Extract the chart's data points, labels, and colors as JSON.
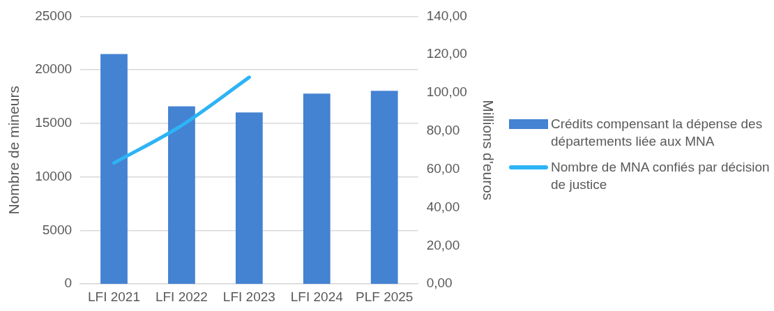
{
  "chart_data": {
    "type": "bar",
    "categories": [
      "LFI 2021",
      "LFI 2022",
      "LFI 2023",
      "LFI 2024",
      "PLF 2025"
    ],
    "series": [
      {
        "name": "Crédits compensant la dépense des départements liée aux MNA",
        "color": "#4482d2",
        "axis": "y2",
        "values": [
          120.3,
          92.9,
          89.7,
          99.6,
          101.0
        ]
      },
      {
        "name": "Nombre de MNA confiés par décision de justice",
        "type": "line",
        "color": "#2db4f5",
        "values": [
          11300,
          14800,
          19300,
          null,
          null
        ]
      }
    ],
    "ylabel": "Nombre de mineurs",
    "y2label": "Millions d'euros",
    "ylim": [
      0,
      25000
    ],
    "yticks": [
      0,
      5000,
      10000,
      15000,
      20000,
      25000
    ],
    "y2lim": [
      0,
      140
    ],
    "y2ticks": [
      {
        "value": 0,
        "label": "0,00"
      },
      {
        "value": 20,
        "label": "20,00"
      },
      {
        "value": 40,
        "label": "40,00"
      },
      {
        "value": 60,
        "label": "60,00"
      },
      {
        "value": 80,
        "label": "80,00"
      },
      {
        "value": 100,
        "label": "100,00"
      },
      {
        "value": 120,
        "label": "120,00"
      },
      {
        "value": 140,
        "label": "140,00"
      }
    ],
    "grid": "y",
    "legend": "right",
    "marker": "none"
  }
}
